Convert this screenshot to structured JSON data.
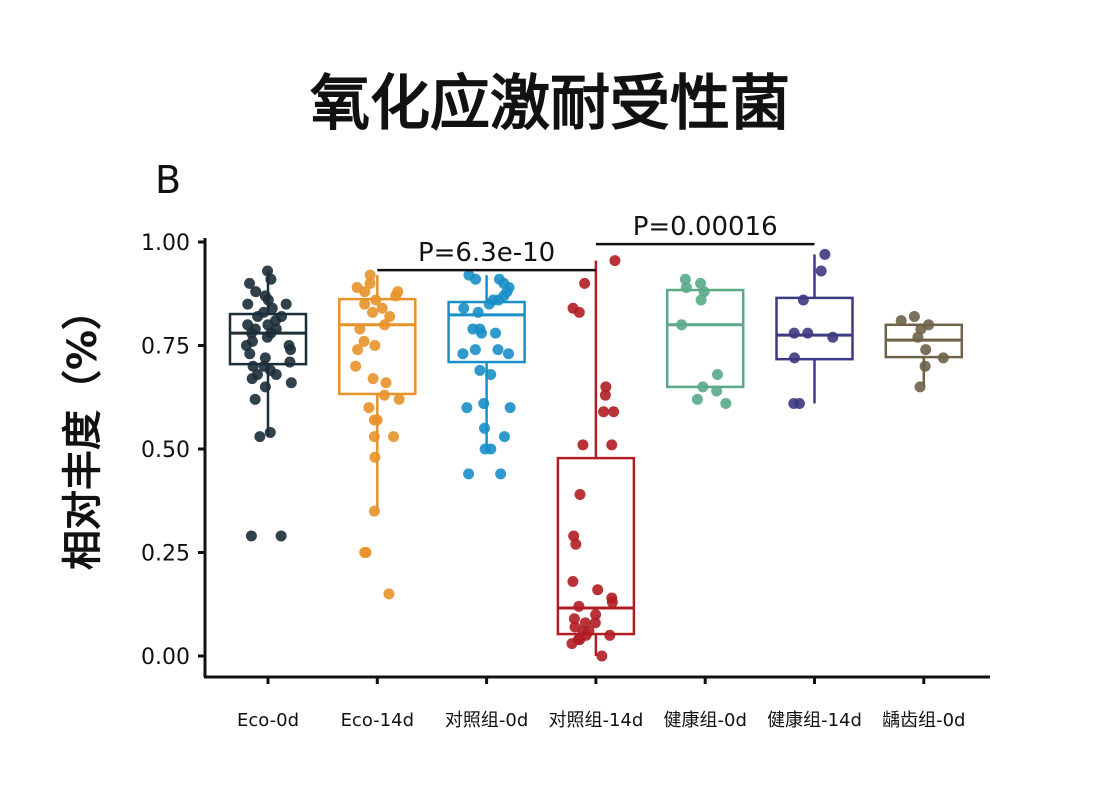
{
  "chart_data": {
    "type": "box",
    "title": "氧化应激耐受性菌",
    "panel_label": "B",
    "xlabel": "",
    "ylabel": "相对丰度（%）",
    "ylim": [
      0,
      1
    ],
    "yticks": [
      "0.00",
      "0.25",
      "0.50",
      "0.75",
      "1.00"
    ],
    "ytick_values": [
      0,
      0.25,
      0.5,
      0.75,
      1.0
    ],
    "grid": false,
    "categories": [
      "Eco-0d",
      "Eco-14d",
      "对照组-0d",
      "对照组-14d",
      "健康组-0d",
      "健康组-14d",
      "龋齿组-0d"
    ],
    "series": [
      {
        "name": "Eco-0d",
        "color": "#1c2e38",
        "box": {
          "low": 0.53,
          "q1": 0.705,
          "median": 0.78,
          "q3": 0.826,
          "high": 0.93
        },
        "points": [
          0.93,
          0.91,
          0.9,
          0.88,
          0.87,
          0.86,
          0.85,
          0.85,
          0.84,
          0.83,
          0.82,
          0.82,
          0.81,
          0.8,
          0.8,
          0.79,
          0.79,
          0.78,
          0.78,
          0.77,
          0.76,
          0.75,
          0.75,
          0.74,
          0.73,
          0.72,
          0.71,
          0.7,
          0.7,
          0.69,
          0.68,
          0.68,
          0.67,
          0.66,
          0.65,
          0.62,
          0.54,
          0.53,
          0.29,
          0.29
        ]
      },
      {
        "name": "Eco-14d",
        "color": "#e8922a",
        "box": {
          "low": 0.353,
          "q1": 0.633,
          "median": 0.8,
          "q3": 0.862,
          "high": 0.92
        },
        "points": [
          0.92,
          0.9,
          0.89,
          0.88,
          0.88,
          0.87,
          0.86,
          0.85,
          0.84,
          0.83,
          0.82,
          0.8,
          0.79,
          0.76,
          0.75,
          0.74,
          0.7,
          0.67,
          0.66,
          0.63,
          0.62,
          0.6,
          0.57,
          0.57,
          0.53,
          0.53,
          0.48,
          0.35,
          0.25,
          0.25,
          0.15
        ]
      },
      {
        "name": "对照组-0d",
        "color": "#1a8fc8",
        "box": {
          "low": 0.5,
          "q1": 0.71,
          "median": 0.824,
          "q3": 0.855,
          "high": 0.92
        },
        "points": [
          0.92,
          0.91,
          0.91,
          0.9,
          0.89,
          0.88,
          0.87,
          0.86,
          0.86,
          0.85,
          0.84,
          0.83,
          0.79,
          0.79,
          0.78,
          0.78,
          0.74,
          0.74,
          0.73,
          0.73,
          0.69,
          0.68,
          0.61,
          0.6,
          0.6,
          0.55,
          0.53,
          0.5,
          0.5,
          0.44,
          0.44
        ]
      },
      {
        "name": "对照组-14d",
        "color": "#b01e24",
        "box": {
          "low": 0.0,
          "q1": 0.053,
          "median": 0.116,
          "q3": 0.478,
          "high": 0.955
        },
        "points": [
          0.955,
          0.9,
          0.84,
          0.83,
          0.65,
          0.63,
          0.59,
          0.59,
          0.51,
          0.51,
          0.39,
          0.29,
          0.27,
          0.18,
          0.16,
          0.14,
          0.13,
          0.12,
          0.1,
          0.09,
          0.08,
          0.08,
          0.07,
          0.06,
          0.06,
          0.05,
          0.05,
          0.04,
          0.04,
          0.03,
          0.0
        ]
      },
      {
        "name": "健康组-0d",
        "color": "#5aaa88",
        "box": {
          "low": 0.65,
          "q1": 0.65,
          "median": 0.8,
          "q3": 0.884,
          "high": 0.884
        },
        "points": [
          0.91,
          0.9,
          0.89,
          0.88,
          0.86,
          0.8,
          0.68,
          0.65,
          0.64,
          0.62,
          0.61
        ]
      },
      {
        "name": "健康组-14d",
        "color": "#3c3a82",
        "box": {
          "low": 0.61,
          "q1": 0.717,
          "median": 0.775,
          "q3": 0.865,
          "high": 0.97
        },
        "points": [
          0.97,
          0.93,
          0.86,
          0.78,
          0.78,
          0.77,
          0.72,
          0.61,
          0.61
        ]
      },
      {
        "name": "龋齿组-0d",
        "color": "#6e6248",
        "box": {
          "low": 0.652,
          "q1": 0.722,
          "median": 0.763,
          "q3": 0.8,
          "high": 0.8
        },
        "points": [
          0.82,
          0.81,
          0.8,
          0.79,
          0.77,
          0.74,
          0.72,
          0.7,
          0.65
        ]
      }
    ],
    "annotations": [
      {
        "text": "P=6.3e-10",
        "prefix": "P",
        "value": "=6.3e-10",
        "from": "Eco-14d",
        "to": "对照组-14d",
        "y": 0.932
      },
      {
        "text": "P=0.00016",
        "prefix": "P",
        "value": "=0.00016",
        "from": "对照组-14d",
        "to": "健康组-14d",
        "y": 0.995
      }
    ]
  }
}
